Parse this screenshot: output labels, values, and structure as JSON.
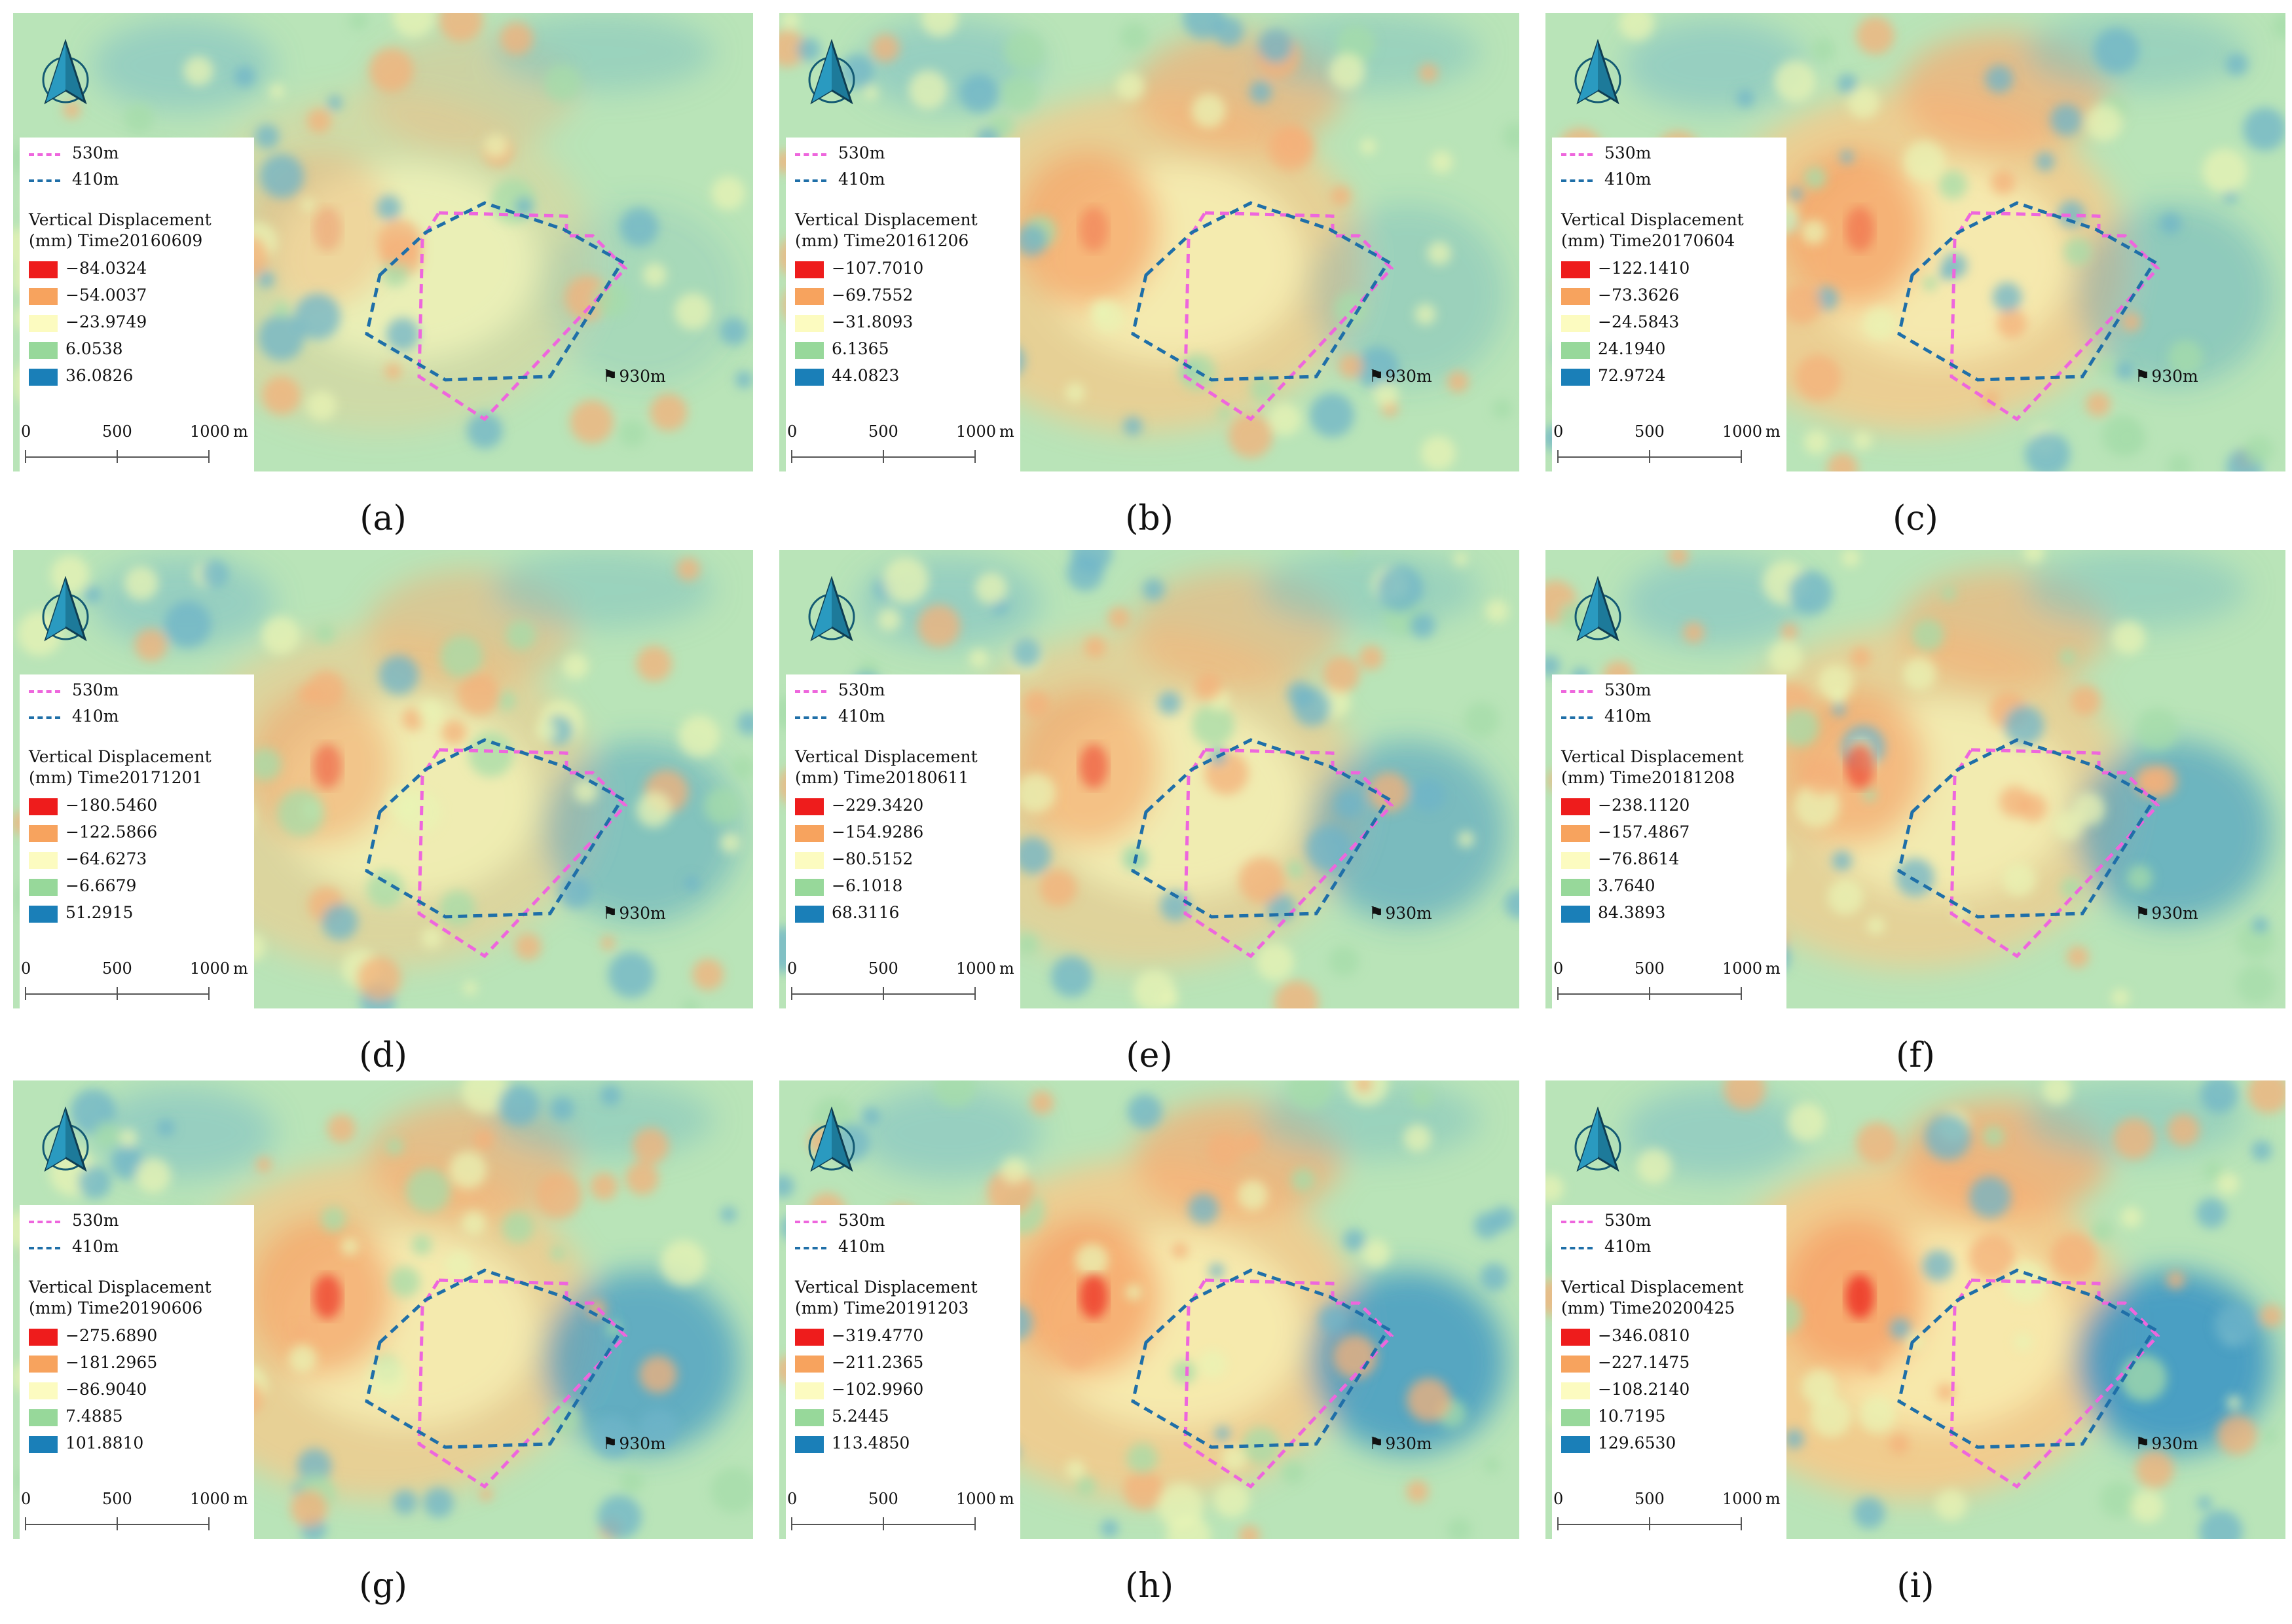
{
  "lines": {
    "l530": "530m",
    "l410": "410m",
    "elev": "930m"
  },
  "legend_title": "Vertical Displacement",
  "scale": {
    "t0": "0",
    "t500": "500",
    "t1000": "1000",
    "unit": "m"
  },
  "colors": {
    "pink_line": "#ee66dd",
    "blue_line": "#1f6fa8",
    "classes": [
      "#ee1c1c",
      "#f7a35e",
      "#fcfbc0",
      "#97d89a",
      "#1a7fb8"
    ],
    "background_green": "#b9e4b8"
  },
  "panels": [
    {
      "caption": "(a)",
      "time": "(mm) Time20160609",
      "values": [
        "−84.0324",
        "−54.0037",
        "−23.9749",
        "6.0538",
        "36.0826"
      ]
    },
    {
      "caption": "(b)",
      "time": "(mm) Time20161206",
      "values": [
        "−107.7010",
        "−69.7552",
        "−31.8093",
        "6.1365",
        "44.0823"
      ]
    },
    {
      "caption": "(c)",
      "time": "(mm) Time20170604",
      "values": [
        "−122.1410",
        "−73.3626",
        "−24.5843",
        "24.1940",
        "72.9724"
      ]
    },
    {
      "caption": "(d)",
      "time": "(mm) Time20171201",
      "values": [
        "−180.5460",
        "−122.5866",
        "−64.6273",
        "−6.6679",
        "51.2915"
      ]
    },
    {
      "caption": "(e)",
      "time": "(mm) Time20180611",
      "values": [
        "−229.3420",
        "−154.9286",
        "−80.5152",
        "−6.1018",
        "68.3116"
      ]
    },
    {
      "caption": "(f)",
      "time": "(mm) Time20181208",
      "values": [
        "−238.1120",
        "−157.4867",
        "−76.8614",
        "3.7640",
        "84.3893"
      ]
    },
    {
      "caption": "(g)",
      "time": "(mm) Time20190606",
      "values": [
        "−275.6890",
        "−181.2965",
        "−86.9040",
        "7.4885",
        "101.8810"
      ]
    },
    {
      "caption": "(h)",
      "time": "(mm) Time20191203",
      "values": [
        "−319.4770",
        "−211.2365",
        "−102.9960",
        "5.2445",
        "113.4850"
      ]
    },
    {
      "caption": "(i)",
      "time": "(mm) Time20200425",
      "values": [
        "−346.0810",
        "−227.1475",
        "−108.2140",
        "10.7195",
        "129.6530"
      ]
    }
  ]
}
